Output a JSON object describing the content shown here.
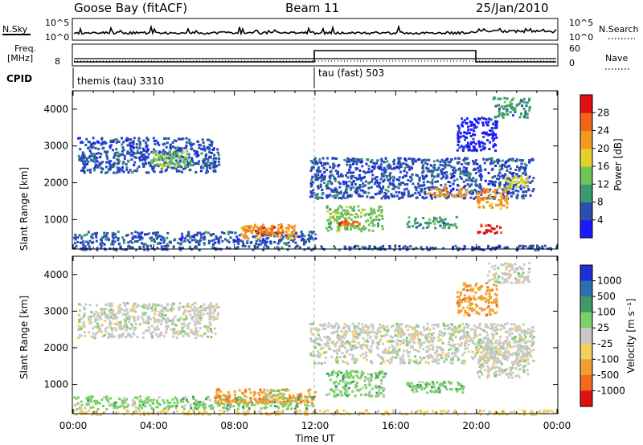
{
  "header": {
    "station": "Goose Bay (fitACF)",
    "beam": "Beam 11",
    "date": "25/Jan/2010"
  },
  "noise_panel": {
    "left_label": "N.Sky",
    "right_label": "N.Search",
    "left_ticks": [
      "10^5",
      "10^0"
    ],
    "right_ticks": [
      "10^5",
      "10^0"
    ]
  },
  "freq_panel": {
    "left_label_1": "Freq.",
    "left_label_2": "[MHz]",
    "left_tick": "8",
    "right_label": "Nave",
    "right_ticks": [
      "60",
      "0"
    ]
  },
  "cpid": {
    "label": "CPID",
    "modes": [
      {
        "name": "themis (tau) 3310",
        "start_hour": 0,
        "end_hour": 12
      },
      {
        "name": "tau (fast) 503",
        "start_hour": 12,
        "end_hour": 24
      }
    ]
  },
  "colors": {
    "power": [
      "#1a1aff",
      "#2a4fb0",
      "#3a9a6e",
      "#6fc35a",
      "#e3d12a",
      "#f29a1f",
      "#f06418",
      "#e01010"
    ],
    "velocity": [
      "#2030d8",
      "#2e6fb0",
      "#3f9a66",
      "#7cd068",
      "#c8c8c8",
      "#f2d060",
      "#f0a030",
      "#f06a20",
      "#e01010"
    ],
    "ground": "#c8c8c8"
  },
  "chart_data": [
    {
      "type": "heatmap",
      "title": "",
      "xlabel": "",
      "ylabel": "Slant Range [km]",
      "xlim_hours": [
        0,
        24
      ],
      "ylim": [
        200,
        4500
      ],
      "y_ticks": [
        1000,
        2000,
        3000,
        4000
      ],
      "colorbar_label": "Power [dB]",
      "colorbar_ticks": [
        "4",
        "8",
        "12",
        "16",
        "20",
        "24",
        "28"
      ],
      "colorbar_range": [
        0,
        32
      ],
      "patches": [
        {
          "t0": 0.2,
          "t1": 7.2,
          "r0": 2300,
          "r1": 3250,
          "level": 1
        },
        {
          "t0": 3.8,
          "t1": 6.0,
          "r0": 2450,
          "r1": 2900,
          "level": 3
        },
        {
          "t0": 0.0,
          "t1": 12.0,
          "r0": 350,
          "r1": 700,
          "level": 1
        },
        {
          "t0": 8.3,
          "t1": 11.0,
          "r0": 500,
          "r1": 900,
          "level": 5
        },
        {
          "t0": 9.0,
          "t1": 10.3,
          "r0": 600,
          "r1": 850,
          "level": 6
        },
        {
          "t0": 11.7,
          "t1": 22.8,
          "r0": 1600,
          "r1": 2700,
          "level": 1
        },
        {
          "t0": 12.5,
          "t1": 15.3,
          "r0": 700,
          "r1": 1400,
          "level": 3
        },
        {
          "t0": 13.0,
          "t1": 14.2,
          "r0": 850,
          "r1": 1050,
          "level": 6
        },
        {
          "t0": 16.5,
          "t1": 19.0,
          "r0": 800,
          "r1": 1100,
          "level": 2
        },
        {
          "t0": 17.5,
          "t1": 19.5,
          "r0": 1650,
          "r1": 1900,
          "level": 5
        },
        {
          "t0": 20.0,
          "t1": 21.5,
          "r0": 1300,
          "r1": 1900,
          "level": 5
        },
        {
          "t0": 20.0,
          "t1": 21.2,
          "r0": 650,
          "r1": 900,
          "level": 7
        },
        {
          "t0": 21.3,
          "t1": 22.5,
          "r0": 1900,
          "r1": 2200,
          "level": 4
        },
        {
          "t0": 20.8,
          "t1": 22.6,
          "r0": 3800,
          "r1": 4350,
          "level": 2
        },
        {
          "t0": 19.0,
          "t1": 21.0,
          "r0": 2900,
          "r1": 3800,
          "level": 0
        },
        {
          "t0": 0.0,
          "t1": 24.0,
          "r0": 200,
          "r1": 320,
          "level": 1
        }
      ]
    },
    {
      "type": "heatmap",
      "title": "",
      "xlabel": "Time UT",
      "ylabel": "Slant Range [km]",
      "xlim_hours": [
        0,
        24
      ],
      "ylim": [
        200,
        4500
      ],
      "y_ticks": [
        1000,
        2000,
        3000,
        4000
      ],
      "x_ticks": [
        "00:00",
        "04:00",
        "08:00",
        "12:00",
        "16:00",
        "20:00",
        "00:00"
      ],
      "colorbar_label": "Velocity [m s⁻¹]",
      "colorbar_ticks": [
        "1000",
        "500",
        "100",
        "25",
        "-25",
        "-100",
        "-500",
        "-1000"
      ],
      "patches": [
        {
          "t0": 0.2,
          "t1": 7.2,
          "r0": 2300,
          "r1": 3250,
          "level": 4
        },
        {
          "t0": 0.0,
          "t1": 12.0,
          "r0": 350,
          "r1": 700,
          "level": 3
        },
        {
          "t0": 7.0,
          "t1": 12.0,
          "r0": 500,
          "r1": 900,
          "level": 6
        },
        {
          "t0": 9.5,
          "t1": 10.5,
          "r0": 700,
          "r1": 900,
          "level": 3
        },
        {
          "t0": 11.7,
          "t1": 22.8,
          "r0": 1600,
          "r1": 2700,
          "level": 4
        },
        {
          "t0": 12.5,
          "t1": 15.5,
          "r0": 700,
          "r1": 1400,
          "level": 3
        },
        {
          "t0": 16.5,
          "t1": 19.5,
          "r0": 800,
          "r1": 1100,
          "level": 3
        },
        {
          "t0": 20.0,
          "t1": 22.5,
          "r0": 1200,
          "r1": 2200,
          "level": 4
        },
        {
          "t0": 20.5,
          "t1": 22.6,
          "r0": 3800,
          "r1": 4350,
          "level": 4
        },
        {
          "t0": 19.0,
          "t1": 21.0,
          "r0": 2900,
          "r1": 3800,
          "level": 6
        },
        {
          "t0": 0.0,
          "t1": 24.0,
          "r0": 200,
          "r1": 320,
          "level": 5
        }
      ]
    }
  ]
}
